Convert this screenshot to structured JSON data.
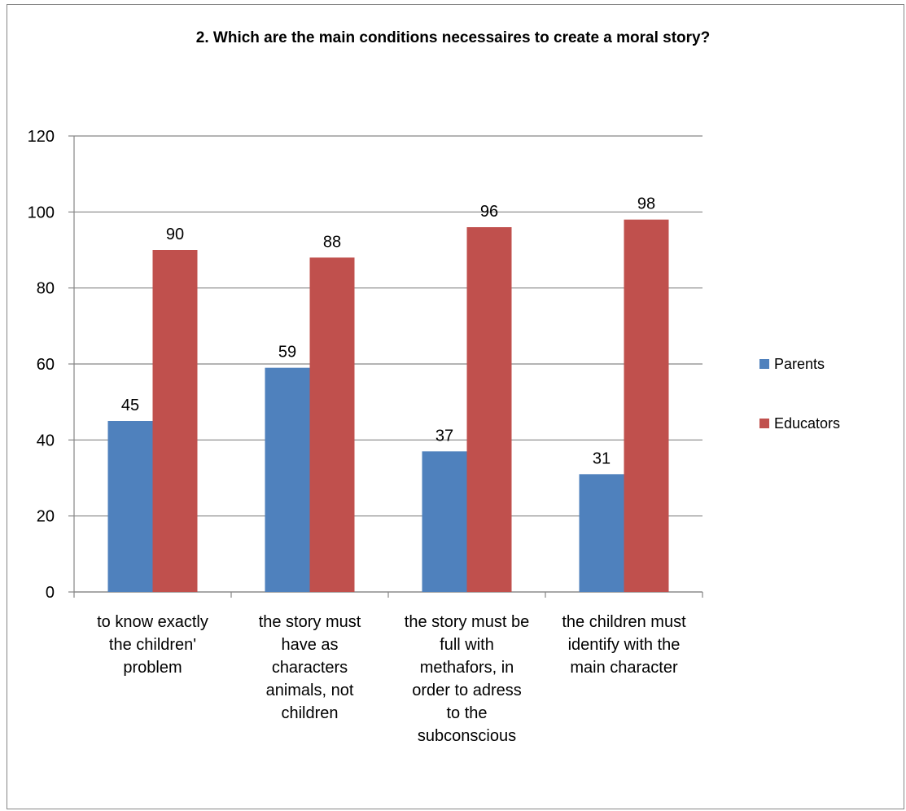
{
  "chart_data": {
    "type": "bar",
    "title": "2. Which are the main conditions necessaires  to create a moral  story?",
    "categories": [
      [
        "to know exactly",
        "the children'",
        "problem"
      ],
      [
        "the story must",
        "have as",
        "characters",
        "animals, not",
        "children"
      ],
      [
        "the story must be",
        "full with",
        "methafors, in",
        "order to adress",
        "to the",
        "subconscious"
      ],
      [
        "the children must",
        "identify with the",
        "main character"
      ]
    ],
    "series": [
      {
        "name": "Parents",
        "values": [
          45,
          59,
          37,
          31
        ],
        "color": "#4f81bd"
      },
      {
        "name": "Educators",
        "values": [
          90,
          88,
          96,
          98
        ],
        "color": "#c0504d"
      }
    ],
    "ylim": [
      0,
      120
    ],
    "yticks": [
      0,
      20,
      40,
      60,
      80,
      100,
      120
    ],
    "grid": true,
    "legend": "right"
  }
}
